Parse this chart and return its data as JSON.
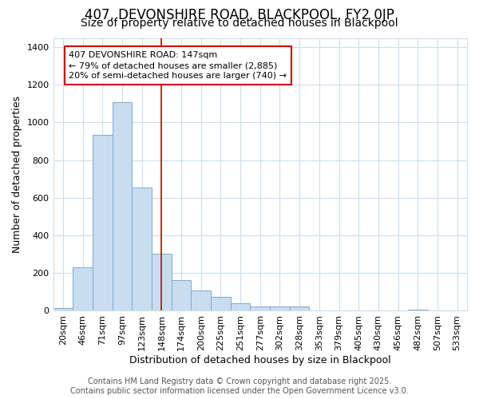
{
  "title": "407, DEVONSHIRE ROAD, BLACKPOOL, FY2 0JP",
  "subtitle": "Size of property relative to detached houses in Blackpool",
  "xlabel": "Distribution of detached houses by size in Blackpool",
  "ylabel": "Number of detached properties",
  "categories": [
    "20sqm",
    "46sqm",
    "71sqm",
    "97sqm",
    "123sqm",
    "148sqm",
    "174sqm",
    "200sqm",
    "225sqm",
    "251sqm",
    "277sqm",
    "302sqm",
    "328sqm",
    "353sqm",
    "379sqm",
    "405sqm",
    "430sqm",
    "456sqm",
    "482sqm",
    "507sqm",
    "533sqm"
  ],
  "values": [
    12,
    230,
    935,
    1110,
    655,
    300,
    160,
    105,
    70,
    40,
    20,
    20,
    20,
    0,
    0,
    0,
    0,
    0,
    5,
    0,
    0
  ],
  "bar_color": "#c9ddf0",
  "bar_edge_color": "#7aaad4",
  "annotation_text": "407 DEVONSHIRE ROAD: 147sqm\n← 79% of detached houses are smaller (2,885)\n20% of semi-detached houses are larger (740) →",
  "annotation_box_color": "#ffffff",
  "annotation_box_edge": "#cc0000",
  "marker_line_color": "#cc0000",
  "ylim": [
    0,
    1450
  ],
  "yticks": [
    0,
    200,
    400,
    600,
    800,
    1000,
    1200,
    1400
  ],
  "footer_line1": "Contains HM Land Registry data © Crown copyright and database right 2025.",
  "footer_line2": "Contains public sector information licensed under the Open Government Licence v3.0.",
  "bg_color": "#ffffff",
  "grid_color": "#d0dde8",
  "title_fontsize": 12,
  "subtitle_fontsize": 10,
  "axis_label_fontsize": 9,
  "tick_fontsize": 8,
  "footer_fontsize": 7,
  "annotation_fontsize": 8
}
